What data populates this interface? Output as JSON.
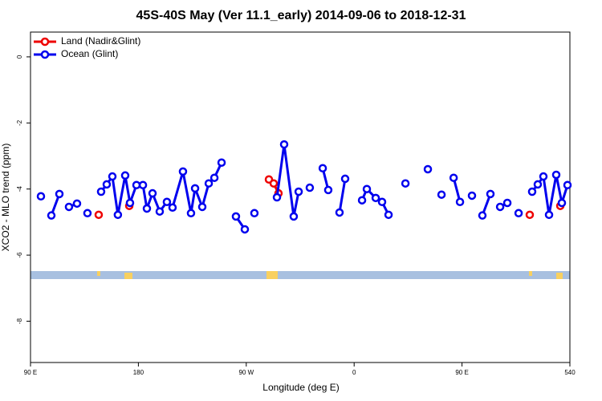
{
  "chart_data": {
    "type": "line",
    "title": "45S-40S May (Ver 11.1_early)   2014-09-06 to 2018-12-31",
    "xlabel": "Longitude (deg E)",
    "ylabel": "XCO2 - MLO trend (ppm)",
    "xlim": [
      90,
      540
    ],
    "ylim": [
      -9.25,
      0.75
    ],
    "xticks": [
      {
        "value": 90,
        "label": "90 E"
      },
      180,
      {
        "value": 270,
        "label": "90 W"
      },
      {
        "value": 360,
        "label": "0"
      },
      {
        "value": 450,
        "label": "90 E"
      },
      540
    ],
    "yticks": [
      0,
      -2,
      -4,
      -6,
      -8
    ],
    "legend": "top-left",
    "series": [
      {
        "name": "Land (Nadir&Glint)",
        "color": "#ee0000",
        "x": [
          146.9,
          null,
          172.4,
          null,
          288.9,
          292.9,
          296.9,
          null,
          506.5,
          null,
          532.0
        ],
        "values": [
          -4.78,
          null,
          -4.51,
          null,
          -3.71,
          -3.83,
          -4.13,
          null,
          -4.78,
          null,
          -4.51
        ]
      },
      {
        "name": "Ocean (Glint)",
        "color": "#0000ee",
        "x": [
          98.7,
          null,
          107.4,
          114.1,
          null,
          122.1,
          128.8,
          null,
          137.5,
          null,
          148.9,
          153.6,
          158.3,
          162.9,
          169.0,
          173.0,
          178.4,
          183.8,
          187.1,
          191.8,
          197.8,
          203.8,
          208.5,
          217.2,
          223.9,
          227.3,
          233.3,
          238.7,
          243.4,
          249.4,
          null,
          261.4,
          268.8,
          null,
          276.8,
          null,
          295.6,
          301.6,
          309.6,
          313.7,
          null,
          323.0,
          null,
          333.8,
          338.4,
          null,
          347.8,
          352.5,
          null,
          366.6,
          370.6,
          378.0,
          383.3,
          388.7,
          null,
          402.8,
          null,
          421.5,
          null,
          432.9,
          null,
          443.0,
          448.3,
          null,
          458.3,
          null,
          467.0,
          473.7,
          null,
          481.8,
          487.8,
          null,
          497.2,
          null,
          508.5,
          513.2,
          517.9,
          522.6,
          528.6,
          533.3,
          538.0
        ],
        "values": [
          -4.22,
          null,
          -4.8,
          -4.15,
          null,
          -4.54,
          -4.44,
          null,
          -4.73,
          null,
          -4.08,
          -3.86,
          -3.62,
          -4.78,
          -3.59,
          -4.42,
          -3.88,
          -3.88,
          -4.59,
          -4.13,
          -4.68,
          -4.39,
          -4.56,
          -3.47,
          -4.73,
          -3.98,
          -4.54,
          -3.83,
          -3.66,
          -3.2,
          null,
          -4.83,
          -5.22,
          null,
          -4.73,
          null,
          -4.25,
          -2.65,
          -4.83,
          -4.08,
          null,
          -3.96,
          null,
          -3.37,
          -4.03,
          null,
          -4.71,
          -3.69,
          null,
          -4.34,
          -4.0,
          -4.27,
          -4.39,
          -4.78,
          null,
          -3.83,
          null,
          -3.4,
          null,
          -4.17,
          null,
          -3.66,
          -4.39,
          null,
          -4.2,
          null,
          -4.8,
          -4.15,
          null,
          -4.54,
          -4.42,
          null,
          -4.73,
          null,
          -4.08,
          -3.86,
          -3.62,
          -4.78,
          -3.57,
          -4.42,
          -3.88
        ]
      }
    ]
  }
}
